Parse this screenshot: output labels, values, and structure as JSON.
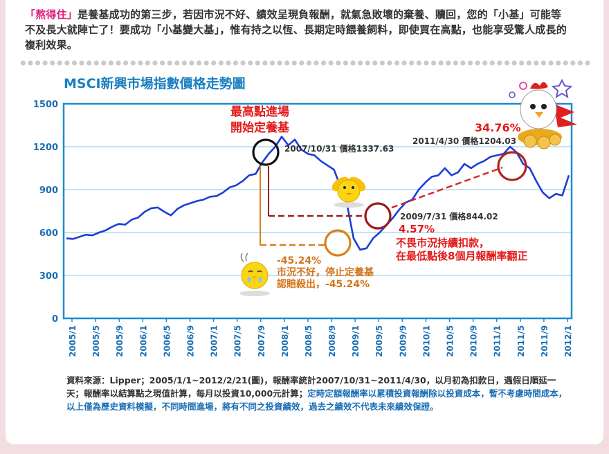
{
  "intro": {
    "highlight": "「熬得住」",
    "text": "是養基成功的第三步，若因市況不好、績效呈現負報酬，就氣急敗壞的棄養、贖回，您的「小基」可能等不及長大就陣亡了！要成功「小基變大基」，惟有持之以恆、長期定時餵養飼料，即使買在高點，也能享受驚人成長的複利效果。"
  },
  "chart_data": {
    "type": "line",
    "title": "MSCI新興市場指數價格走勢圖",
    "ylim": [
      0,
      1500
    ],
    "yticks": [
      0,
      300,
      600,
      900,
      1200,
      1500
    ],
    "xticks": [
      "2005/1",
      "2005/5",
      "2005/9",
      "2006/1",
      "2006/5",
      "2006/9",
      "2007/1",
      "2007/5",
      "2007/9",
      "2008/1",
      "2008/5",
      "2008/9",
      "2009/1",
      "2009/5",
      "2009/9",
      "2010/1",
      "2010/5",
      "2010/9",
      "2011/1",
      "2011/5",
      "2011/9",
      "2012/1"
    ],
    "series": [
      {
        "values": [
          560,
          555,
          570,
          585,
          580,
          600,
          615,
          640,
          660,
          655,
          690,
          705,
          745,
          770,
          775,
          745,
          720,
          765,
          790,
          805,
          820,
          830,
          850,
          855,
          880,
          915,
          930,
          960,
          1000,
          1010,
          1090,
          1150,
          1200,
          1270,
          1210,
          1250,
          1180,
          1150,
          1140,
          1100,
          1070,
          1040,
          920,
          800,
          560,
          480,
          490,
          560,
          600,
          650,
          700,
          760,
          810,
          830,
          900,
          950,
          990,
          1000,
          1050,
          1000,
          1020,
          1080,
          1050,
          1080,
          1100,
          1130,
          1140,
          1150,
          1200,
          1160,
          1080,
          1050,
          960,
          880,
          840,
          870,
          860,
          1000
        ]
      }
    ],
    "color": "#1a3ed6",
    "annotations": [
      {
        "id": "peak",
        "text": "2007/10/31 價格1337.63"
      },
      {
        "id": "low",
        "text": "2009/7/31 價格844.02"
      },
      {
        "id": "end",
        "text": "2011/4/30 價格1204.03"
      },
      {
        "id": "start_label",
        "text": "最高點進場"
      },
      {
        "id": "start_label2",
        "text": "開始定養基"
      },
      {
        "id": "pct_end",
        "text": "34.76%"
      },
      {
        "id": "pct_low",
        "text": "4.57%"
      },
      {
        "id": "keep_1",
        "text": "不畏市況持續扣款，"
      },
      {
        "id": "keep_2",
        "text": "在最低點後8個月報酬率翻正"
      },
      {
        "id": "stop_pct",
        "text": "-45.24%"
      },
      {
        "id": "stop_1",
        "text": "市況不好，停止定養基"
      },
      {
        "id": "stop_2",
        "text": "認賠殺出，-45.24%"
      }
    ]
  },
  "footnote": {
    "plain": "資料來源：Lipper；2005/1/1~2012/2/21(圖)，報酬率統計2007/10/31~2011/4/30，以月初為扣款日，遇假日順延一天；報酬率以結算點之現值計算，每月以投資10,000元計算；",
    "emphasis": "定時定額報酬率以累積投資報酬除以投資成本，暫不考慮時間成本，以上僅為歷史資料模擬，不同時間進場，將有不同之投資績效，過去之績效不代表未來績效保證。"
  }
}
